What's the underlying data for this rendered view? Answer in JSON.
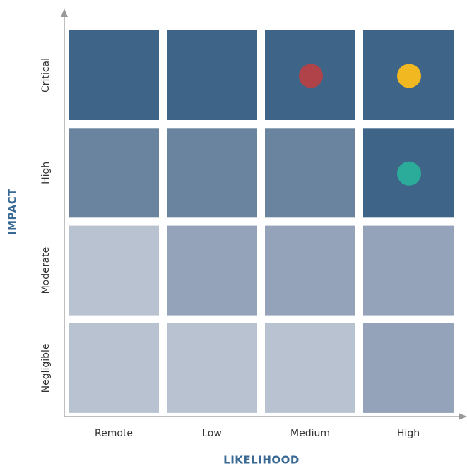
{
  "x_axis": {
    "title": "LIKELIHOOD",
    "labels": [
      "Remote",
      "Low",
      "Medium",
      "High"
    ]
  },
  "y_axis": {
    "title": "IMPACT"
  },
  "rows": [
    {
      "label": "Critical",
      "cells": [
        {
          "color": "#3e6588"
        },
        {
          "color": "#3e6588"
        },
        {
          "color": "#3e6588",
          "marker": "#b0434a"
        },
        {
          "color": "#3e6588",
          "marker": "#f1b821"
        }
      ]
    },
    {
      "label": "High",
      "cells": [
        {
          "color": "#6a839f"
        },
        {
          "color": "#6a839f"
        },
        {
          "color": "#6a839f"
        },
        {
          "color": "#3e6588",
          "marker": "#2bab9a"
        }
      ]
    },
    {
      "label": "Moderate",
      "cells": [
        {
          "color": "#b8c2d1"
        },
        {
          "color": "#94a3ba"
        },
        {
          "color": "#94a3ba"
        },
        {
          "color": "#94a3ba"
        }
      ]
    },
    {
      "label": "Negligible",
      "cells": [
        {
          "color": "#b8c2d1"
        },
        {
          "color": "#b8c2d1"
        },
        {
          "color": "#b8c2d1"
        },
        {
          "color": "#94a3ba"
        }
      ]
    }
  ]
}
